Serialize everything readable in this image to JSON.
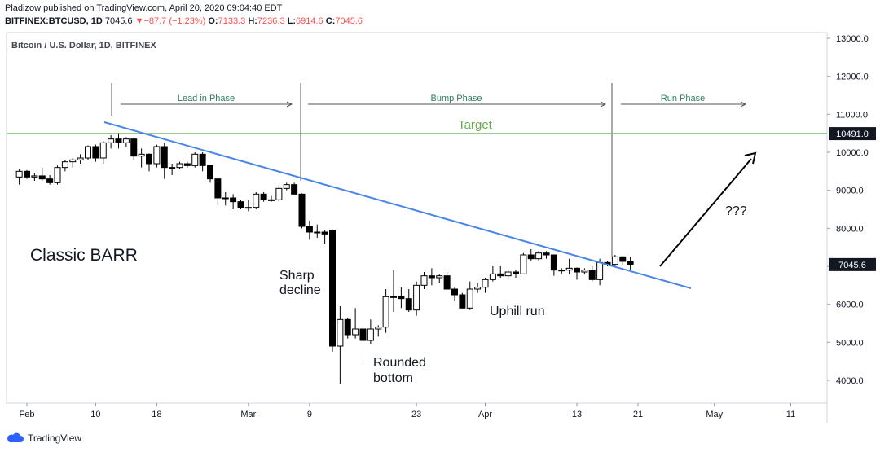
{
  "header": {
    "publisher_line": "Pladizow published on TradingView.com, April 20, 2020 09:04:40 EDT",
    "symbol": "BITFINEX:BTCUSD, 1D",
    "last": "7045.6",
    "arrow": "▼",
    "change": "−87.7 (−1.23%)",
    "o_label": "O:",
    "o_value": "7133.3",
    "h_label": "H:",
    "h_value": "7236.3",
    "l_label": "L:",
    "l_value": "6914.6",
    "c_label": "C:",
    "c_value": "7045.6"
  },
  "footer": {
    "brand": "TradingView"
  },
  "colors": {
    "up_fill": "#ffffff",
    "down_fill": "#000000",
    "candle_stroke": "#000000",
    "trendline": "#4a86e8",
    "target_line": "#6aa84f",
    "target_text": "#6aa84f",
    "phase_text": "#2e7d5b",
    "price_badge_bg": "#131722"
  },
  "chart_data": {
    "type": "candlestick",
    "title": "Bitcoin / U.S. Dollar, 1D, BITFINEX",
    "x_tick_labels": [
      "Feb",
      "10",
      "18",
      "Mar",
      "9",
      "23",
      "Apr",
      "13",
      "21",
      "May",
      "11"
    ],
    "x_tick_dates": [
      "2020-02-01",
      "2020-02-10",
      "2020-02-18",
      "2020-03-01",
      "2020-03-09",
      "2020-03-23",
      "2020-04-01",
      "2020-04-13",
      "2020-04-21",
      "2020-05-01",
      "2020-05-11"
    ],
    "y_tick_labels": [
      "4000.0",
      "5000.0",
      "6000.0",
      "7000.0",
      "8000.0",
      "9000.0",
      "10000.0",
      "11000.0",
      "12000.0",
      "13000.0"
    ],
    "ylim": [
      3400,
      13100
    ],
    "last_price_label": "7045.6",
    "target_price_label": "10491.0",
    "target_price": 10491,
    "candles": [
      {
        "date": "2020-01-31",
        "o": 9350,
        "h": 9550,
        "l": 9150,
        "c": 9500
      },
      {
        "date": "2020-02-01",
        "o": 9500,
        "h": 9530,
        "l": 9300,
        "c": 9350
      },
      {
        "date": "2020-02-02",
        "o": 9350,
        "h": 9450,
        "l": 9250,
        "c": 9380
      },
      {
        "date": "2020-02-03",
        "o": 9380,
        "h": 9600,
        "l": 9250,
        "c": 9300
      },
      {
        "date": "2020-02-04",
        "o": 9300,
        "h": 9400,
        "l": 9150,
        "c": 9200
      },
      {
        "date": "2020-02-05",
        "o": 9200,
        "h": 9650,
        "l": 9150,
        "c": 9600
      },
      {
        "date": "2020-02-06",
        "o": 9600,
        "h": 9800,
        "l": 9500,
        "c": 9750
      },
      {
        "date": "2020-02-07",
        "o": 9750,
        "h": 9850,
        "l": 9600,
        "c": 9800
      },
      {
        "date": "2020-02-08",
        "o": 9800,
        "h": 9950,
        "l": 9700,
        "c": 9850
      },
      {
        "date": "2020-02-09",
        "o": 9850,
        "h": 10180,
        "l": 9800,
        "c": 10150
      },
      {
        "date": "2020-02-10",
        "o": 10150,
        "h": 10200,
        "l": 9750,
        "c": 9850
      },
      {
        "date": "2020-02-11",
        "o": 9850,
        "h": 10300,
        "l": 9700,
        "c": 10250
      },
      {
        "date": "2020-02-12",
        "o": 10250,
        "h": 10450,
        "l": 10100,
        "c": 10350
      },
      {
        "date": "2020-02-13",
        "o": 10350,
        "h": 10500,
        "l": 10100,
        "c": 10250
      },
      {
        "date": "2020-02-14",
        "o": 10250,
        "h": 10400,
        "l": 10150,
        "c": 10350
      },
      {
        "date": "2020-02-15",
        "o": 10350,
        "h": 10390,
        "l": 9800,
        "c": 9900
      },
      {
        "date": "2020-02-16",
        "o": 9900,
        "h": 10100,
        "l": 9600,
        "c": 9950
      },
      {
        "date": "2020-02-17",
        "o": 9950,
        "h": 9970,
        "l": 9500,
        "c": 9700
      },
      {
        "date": "2020-02-18",
        "o": 9700,
        "h": 10200,
        "l": 9600,
        "c": 10150
      },
      {
        "date": "2020-02-19",
        "o": 10150,
        "h": 10250,
        "l": 9300,
        "c": 9600
      },
      {
        "date": "2020-02-20",
        "o": 9600,
        "h": 9700,
        "l": 9400,
        "c": 9600
      },
      {
        "date": "2020-02-21",
        "o": 9600,
        "h": 9750,
        "l": 9550,
        "c": 9700
      },
      {
        "date": "2020-02-22",
        "o": 9700,
        "h": 9750,
        "l": 9600,
        "c": 9650
      },
      {
        "date": "2020-02-23",
        "o": 9650,
        "h": 10000,
        "l": 9600,
        "c": 9950
      },
      {
        "date": "2020-02-24",
        "o": 9950,
        "h": 10000,
        "l": 9500,
        "c": 9650
      },
      {
        "date": "2020-02-25",
        "o": 9650,
        "h": 9670,
        "l": 9200,
        "c": 9300
      },
      {
        "date": "2020-02-26",
        "o": 9300,
        "h": 9350,
        "l": 8600,
        "c": 8800
      },
      {
        "date": "2020-02-27",
        "o": 8800,
        "h": 8950,
        "l": 8600,
        "c": 8800
      },
      {
        "date": "2020-02-28",
        "o": 8800,
        "h": 8900,
        "l": 8500,
        "c": 8700
      },
      {
        "date": "2020-02-29",
        "o": 8700,
        "h": 8750,
        "l": 8500,
        "c": 8550
      },
      {
        "date": "2020-03-01",
        "o": 8550,
        "h": 8750,
        "l": 8450,
        "c": 8550
      },
      {
        "date": "2020-03-02",
        "o": 8550,
        "h": 8950,
        "l": 8500,
        "c": 8900
      },
      {
        "date": "2020-03-03",
        "o": 8900,
        "h": 8950,
        "l": 8700,
        "c": 8750
      },
      {
        "date": "2020-03-04",
        "o": 8750,
        "h": 8850,
        "l": 8700,
        "c": 8750
      },
      {
        "date": "2020-03-05",
        "o": 8750,
        "h": 9150,
        "l": 8700,
        "c": 9050
      },
      {
        "date": "2020-03-06",
        "o": 9050,
        "h": 9200,
        "l": 9000,
        "c": 9150
      },
      {
        "date": "2020-03-07",
        "o": 9150,
        "h": 9200,
        "l": 8900,
        "c": 8900
      },
      {
        "date": "2020-03-08",
        "o": 8900,
        "h": 8920,
        "l": 8000,
        "c": 8050
      },
      {
        "date": "2020-03-09",
        "o": 8050,
        "h": 8200,
        "l": 7700,
        "c": 7900
      },
      {
        "date": "2020-03-10",
        "o": 7900,
        "h": 8100,
        "l": 7750,
        "c": 7900
      },
      {
        "date": "2020-03-11",
        "o": 7900,
        "h": 7950,
        "l": 7600,
        "c": 7850
      },
      {
        "date": "2020-03-12",
        "o": 7950,
        "h": 7970,
        "l": 4750,
        "c": 4900
      },
      {
        "date": "2020-03-13",
        "o": 4900,
        "h": 5950,
        "l": 3900,
        "c": 5600
      },
      {
        "date": "2020-03-14",
        "o": 5600,
        "h": 5650,
        "l": 5100,
        "c": 5200
      },
      {
        "date": "2020-03-15",
        "o": 5200,
        "h": 5900,
        "l": 5100,
        "c": 5350
      },
      {
        "date": "2020-03-16",
        "o": 5350,
        "h": 5400,
        "l": 4500,
        "c": 5050
      },
      {
        "date": "2020-03-17",
        "o": 5050,
        "h": 5600,
        "l": 4950,
        "c": 5350
      },
      {
        "date": "2020-03-18",
        "o": 5350,
        "h": 5450,
        "l": 5150,
        "c": 5400
      },
      {
        "date": "2020-03-19",
        "o": 5400,
        "h": 6400,
        "l": 5250,
        "c": 6200
      },
      {
        "date": "2020-03-20",
        "o": 6200,
        "h": 6900,
        "l": 5800,
        "c": 6200
      },
      {
        "date": "2020-03-21",
        "o": 6200,
        "h": 6450,
        "l": 5900,
        "c": 6150
      },
      {
        "date": "2020-03-22",
        "o": 6150,
        "h": 6400,
        "l": 5800,
        "c": 5850
      },
      {
        "date": "2020-03-23",
        "o": 5850,
        "h": 6600,
        "l": 5700,
        "c": 6500
      },
      {
        "date": "2020-03-24",
        "o": 6500,
        "h": 6850,
        "l": 6400,
        "c": 6750
      },
      {
        "date": "2020-03-25",
        "o": 6750,
        "h": 6950,
        "l": 6500,
        "c": 6700
      },
      {
        "date": "2020-03-26",
        "o": 6700,
        "h": 6800,
        "l": 6550,
        "c": 6750
      },
      {
        "date": "2020-03-27",
        "o": 6750,
        "h": 6850,
        "l": 6400,
        "c": 6400
      },
      {
        "date": "2020-03-28",
        "o": 6400,
        "h": 6450,
        "l": 6100,
        "c": 6250
      },
      {
        "date": "2020-03-29",
        "o": 6250,
        "h": 6300,
        "l": 5900,
        "c": 5900
      },
      {
        "date": "2020-03-30",
        "o": 5900,
        "h": 6600,
        "l": 5850,
        "c": 6400
      },
      {
        "date": "2020-03-31",
        "o": 6400,
        "h": 6550,
        "l": 6300,
        "c": 6450
      },
      {
        "date": "2020-04-01",
        "o": 6450,
        "h": 6700,
        "l": 6300,
        "c": 6650
      },
      {
        "date": "2020-04-02",
        "o": 6650,
        "h": 7000,
        "l": 6600,
        "c": 6800
      },
      {
        "date": "2020-04-03",
        "o": 6800,
        "h": 7000,
        "l": 6700,
        "c": 6750
      },
      {
        "date": "2020-04-04",
        "o": 6750,
        "h": 6900,
        "l": 6650,
        "c": 6850
      },
      {
        "date": "2020-04-05",
        "o": 6850,
        "h": 6900,
        "l": 6700,
        "c": 6800
      },
      {
        "date": "2020-04-06",
        "o": 6800,
        "h": 7350,
        "l": 6800,
        "c": 7300
      },
      {
        "date": "2020-04-07",
        "o": 7300,
        "h": 7450,
        "l": 7150,
        "c": 7200
      },
      {
        "date": "2020-04-08",
        "o": 7200,
        "h": 7400,
        "l": 7150,
        "c": 7350
      },
      {
        "date": "2020-04-09",
        "o": 7350,
        "h": 7400,
        "l": 7200,
        "c": 7300
      },
      {
        "date": "2020-04-10",
        "o": 7300,
        "h": 7300,
        "l": 6750,
        "c": 6900
      },
      {
        "date": "2020-04-11",
        "o": 6900,
        "h": 6950,
        "l": 6800,
        "c": 6900
      },
      {
        "date": "2020-04-12",
        "o": 6900,
        "h": 7200,
        "l": 6800,
        "c": 6950
      },
      {
        "date": "2020-04-13",
        "o": 6950,
        "h": 6970,
        "l": 6650,
        "c": 6850
      },
      {
        "date": "2020-04-14",
        "o": 6850,
        "h": 6950,
        "l": 6800,
        "c": 6900
      },
      {
        "date": "2020-04-15",
        "o": 6900,
        "h": 7000,
        "l": 6600,
        "c": 6650
      },
      {
        "date": "2020-04-16",
        "o": 6650,
        "h": 7200,
        "l": 6500,
        "c": 7100
      },
      {
        "date": "2020-04-17",
        "o": 7100,
        "h": 7150,
        "l": 7000,
        "c": 7050
      },
      {
        "date": "2020-04-18",
        "o": 7050,
        "h": 7300,
        "l": 7000,
        "c": 7250
      },
      {
        "date": "2020-04-19",
        "o": 7250,
        "h": 7270,
        "l": 7050,
        "c": 7130
      },
      {
        "date": "2020-04-20",
        "o": 7133.3,
        "h": 7236.3,
        "l": 6914.6,
        "c": 7045.6
      }
    ]
  },
  "annotations": {
    "pattern_label": "Classic BARR",
    "target_label": "Target",
    "phase_lead": "Lead in Phase",
    "phase_bump": "Bump Phase",
    "phase_run": "Run Phase",
    "sharp_decline_1": "Sharp",
    "sharp_decline_2": "decline",
    "rounded_bottom_1": "Rounded",
    "rounded_bottom_2": "bottom",
    "uphill_run": "Uphill run",
    "question": "???"
  }
}
